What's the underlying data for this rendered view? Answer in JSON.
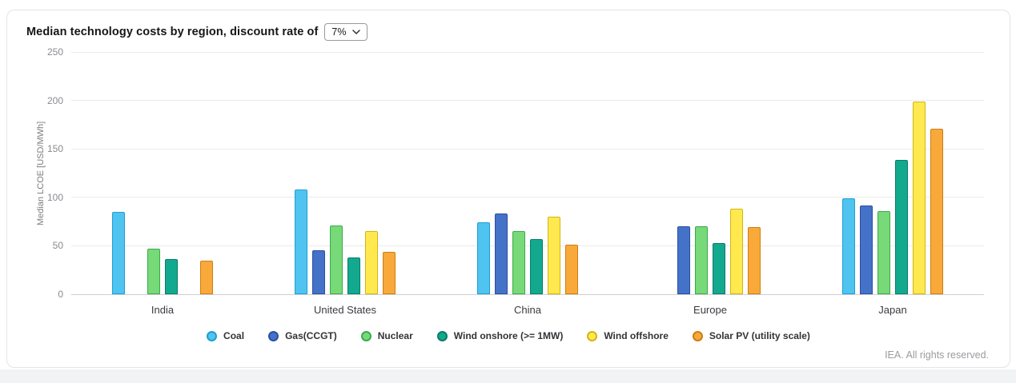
{
  "page": {
    "title_prefix": "Median technology costs by region, discount rate of",
    "discount_rate_value": "7%",
    "footer": "IEA. All rights reserved."
  },
  "chart_data": {
    "type": "bar",
    "title": "Median technology costs by region, discount rate of 7%",
    "ylabel": "Median LCOE [USD/MWh]",
    "ylim": [
      0,
      250
    ],
    "yticks": [
      0,
      50,
      100,
      150,
      200,
      250
    ],
    "grid": true,
    "legend_position": "bottom",
    "categories": [
      "India",
      "United States",
      "China",
      "Europe",
      "Japan"
    ],
    "series": [
      {
        "name": "Coal",
        "color": "#4fc4f0",
        "border": "#1f9ed2",
        "values": [
          85,
          108,
          74,
          null,
          99
        ]
      },
      {
        "name": "Gas(CCGT)",
        "color": "#4472c8",
        "border": "#2b4fa2",
        "values": [
          null,
          45,
          83,
          70,
          92
        ]
      },
      {
        "name": "Nuclear",
        "color": "#77d977",
        "border": "#3aaa4e",
        "values": [
          47,
          71,
          65,
          70,
          86
        ]
      },
      {
        "name": "Wind onshore (>= 1MW)",
        "color": "#12a98e",
        "border": "#0a7c69",
        "values": [
          36,
          38,
          57,
          53,
          139
        ]
      },
      {
        "name": "Wind offshore",
        "color": "#ffe94f",
        "border": "#d3b513",
        "values": [
          null,
          65,
          80,
          88,
          199
        ]
      },
      {
        "name": "Solar PV (utility scale)",
        "color": "#f8a93a",
        "border": "#cd7e11",
        "values": [
          35,
          44,
          51,
          69,
          171
        ]
      }
    ]
  }
}
